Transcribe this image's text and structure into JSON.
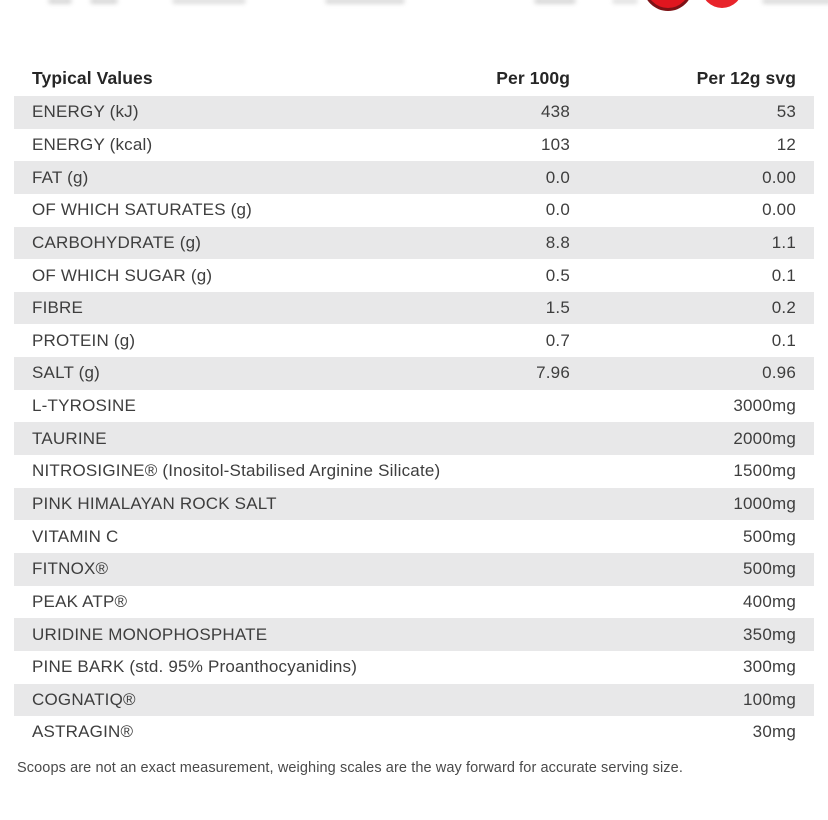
{
  "table": {
    "header": {
      "label": "Typical Values",
      "per100": "Per 100g",
      "serving": "Per 12g svg"
    },
    "rows": [
      {
        "label": "ENERGY (kJ)",
        "per100": "438",
        "serv": "53"
      },
      {
        "label": "ENERGY (kcal)",
        "per100": "103",
        "serv": "12"
      },
      {
        "label": "FAT (g)",
        "per100": "0.0",
        "serv": "0.00"
      },
      {
        "label": "OF WHICH SATURATES (g)",
        "per100": "0.0",
        "serv": "0.00"
      },
      {
        "label": "CARBOHYDRATE (g)",
        "per100": "8.8",
        "serv": "1.1"
      },
      {
        "label": "OF WHICH SUGAR (g)",
        "per100": "0.5",
        "serv": "0.1"
      },
      {
        "label": "FIBRE",
        "per100": "1.5",
        "serv": "0.2"
      },
      {
        "label": "PROTEIN (g)",
        "per100": "0.7",
        "serv": "0.1"
      },
      {
        "label": "SALT (g)",
        "per100": "7.96",
        "serv": "0.96"
      },
      {
        "label": "L-TYROSINE",
        "per100": "",
        "serv": "3000mg"
      },
      {
        "label": "TAURINE",
        "per100": "",
        "serv": "2000mg"
      },
      {
        "label": "NITROSIGINE® (Inositol-Stabilised Arginine Silicate)",
        "per100": "",
        "serv": "1500mg"
      },
      {
        "label": "PINK HIMALAYAN ROCK SALT",
        "per100": "",
        "serv": "1000mg"
      },
      {
        "label": "VITAMIN C",
        "per100": "",
        "serv": "500mg"
      },
      {
        "label": "FITNOX®",
        "per100": "",
        "serv": "500mg"
      },
      {
        "label": "PEAK ATP®",
        "per100": "",
        "serv": "400mg"
      },
      {
        "label": "URIDINE MONOPHOSPHATE",
        "per100": "",
        "serv": "350mg"
      },
      {
        "label": "PINE BARK (std. 95% Proanthocyanidins)",
        "per100": "",
        "serv": "300mg"
      },
      {
        "label": "COGNATIQ®",
        "per100": "",
        "serv": "100mg"
      },
      {
        "label": "ASTRAGIN®",
        "per100": "",
        "serv": "30mg"
      }
    ]
  },
  "footer": {
    "note": "Scoops are not an exact measurement, weighing scales are the way forward for accurate serving size."
  },
  "colors": {
    "row_alt_bg": "#e8e8e9",
    "text": "#3e3e3e",
    "header_text": "#262626",
    "note_text": "#4a4a4a",
    "accent_red": "#e0161f"
  }
}
